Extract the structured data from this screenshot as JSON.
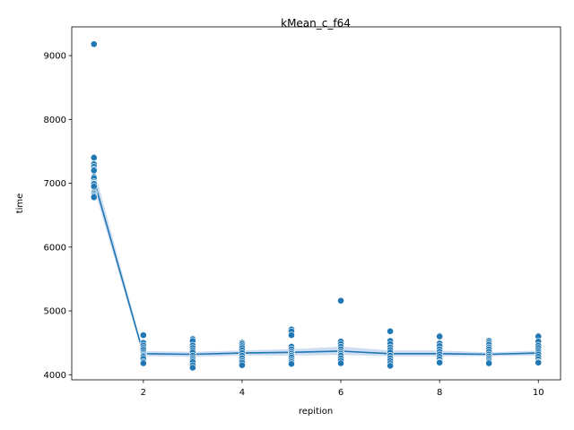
{
  "chart_data": {
    "type": "scatter",
    "title": "kMean_c_f64",
    "xlabel": "repition",
    "ylabel": "time",
    "xlim": [
      0.55,
      10.45
    ],
    "ylim": [
      3920,
      9450
    ],
    "xticks": [
      2,
      4,
      6,
      8,
      10
    ],
    "yticks": [
      4000,
      5000,
      6000,
      7000,
      8000,
      9000
    ],
    "grid": false,
    "legend": "none",
    "point_color": "#1f77b4",
    "line_color": "#1f77b4",
    "band_color": "#aec7e8",
    "points": [
      {
        "x": 1,
        "y": [
          9180,
          7410,
          7400,
          7300,
          7260,
          7220,
          7200,
          7100,
          7080,
          7020,
          7000,
          6990,
          6950,
          6860,
          6840,
          6820,
          6800,
          6780
        ]
      },
      {
        "x": 2,
        "y": [
          4620,
          4500,
          4460,
          4420,
          4390,
          4350,
          4320,
          4300,
          4280,
          4250,
          4200,
          4180
        ]
      },
      {
        "x": 3,
        "y": [
          4560,
          4530,
          4460,
          4420,
          4380,
          4350,
          4300,
          4260,
          4230,
          4200,
          4150,
          4110
        ]
      },
      {
        "x": 4,
        "y": [
          4500,
          4480,
          4450,
          4420,
          4380,
          4340,
          4300,
          4260,
          4220,
          4190,
          4150
        ]
      },
      {
        "x": 5,
        "y": [
          4710,
          4680,
          4620,
          4440,
          4400,
          4360,
          4330,
          4300,
          4270,
          4230,
          4200,
          4170
        ]
      },
      {
        "x": 6,
        "y": [
          5160,
          4520,
          4480,
          4440,
          4400,
          4360,
          4330,
          4300,
          4260,
          4220,
          4180
        ]
      },
      {
        "x": 7,
        "y": [
          4680,
          4530,
          4480,
          4430,
          4390,
          4350,
          4300,
          4260,
          4220,
          4180,
          4140
        ]
      },
      {
        "x": 8,
        "y": [
          4610,
          4600,
          4490,
          4450,
          4400,
          4360,
          4320,
          4280,
          4240,
          4200,
          4190
        ]
      },
      {
        "x": 9,
        "y": [
          4530,
          4500,
          4470,
          4430,
          4400,
          4360,
          4320,
          4290,
          4260,
          4230,
          4200,
          4180
        ]
      },
      {
        "x": 10,
        "y": [
          4610,
          4600,
          4520,
          4460,
          4420,
          4380,
          4350,
          4320,
          4280,
          4240,
          4200,
          4190
        ]
      }
    ],
    "mean_line": {
      "x": [
        1,
        2,
        3,
        4,
        5,
        6,
        7,
        8,
        9,
        10
      ],
      "y": [
        7050,
        4330,
        4320,
        4340,
        4350,
        4370,
        4330,
        4330,
        4320,
        4340
      ]
    },
    "ci_band": {
      "x": [
        1,
        2,
        3,
        4,
        5,
        6,
        7,
        8,
        9,
        10
      ],
      "lower": [
        6920,
        4290,
        4280,
        4300,
        4300,
        4310,
        4290,
        4290,
        4290,
        4300
      ],
      "upper": [
        7230,
        4370,
        4360,
        4380,
        4400,
        4440,
        4380,
        4380,
        4350,
        4380
      ]
    }
  }
}
